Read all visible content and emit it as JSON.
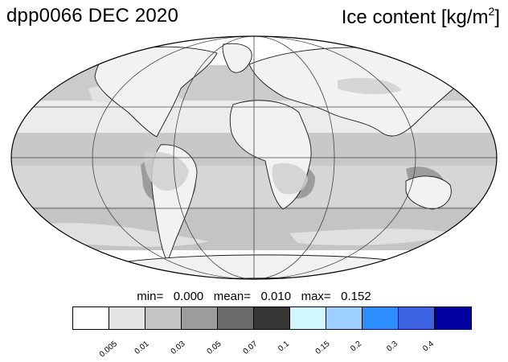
{
  "header": {
    "left_title": "dpp0066 DEC 2020",
    "right_title_main": "Ice content  [kg/m",
    "right_title_sup": "2",
    "right_title_end": "]"
  },
  "stats": {
    "text": "min=   0.000   mean=   0.010   max=   0.152"
  },
  "legend": {
    "colors": [
      "#ffffff",
      "#e3e3e3",
      "#c5c5c5",
      "#9c9c9c",
      "#6a6a6a",
      "#363636",
      "#d2f6ff",
      "#9dcfff",
      "#2b8efc",
      "#3c63e1",
      "#0000a0"
    ],
    "ticks": [
      "0.005",
      "0.01",
      "0.03",
      "0.05",
      "0.07",
      "0.1",
      "0.15",
      "0.2",
      "0.3",
      "0.4"
    ]
  },
  "map": {
    "projection": "Mollweide",
    "background_color": "#c8c8c8",
    "bands": [
      {
        "lat_from": 90,
        "lat_to": 60,
        "color": "#e2e2e2"
      },
      {
        "lat_from": 60,
        "lat_to": 35,
        "color": "#cbcbcb"
      },
      {
        "lat_from": 35,
        "lat_to": 15,
        "color": "#ececec"
      },
      {
        "lat_from": 15,
        "lat_to": -5,
        "color": "#c8c8c8"
      },
      {
        "lat_from": -5,
        "lat_to": -30,
        "color": "#d6d6d6"
      },
      {
        "lat_from": -30,
        "lat_to": -60,
        "color": "#c4c4c4"
      },
      {
        "lat_from": -60,
        "lat_to": -90,
        "color": "#dedede"
      }
    ]
  }
}
